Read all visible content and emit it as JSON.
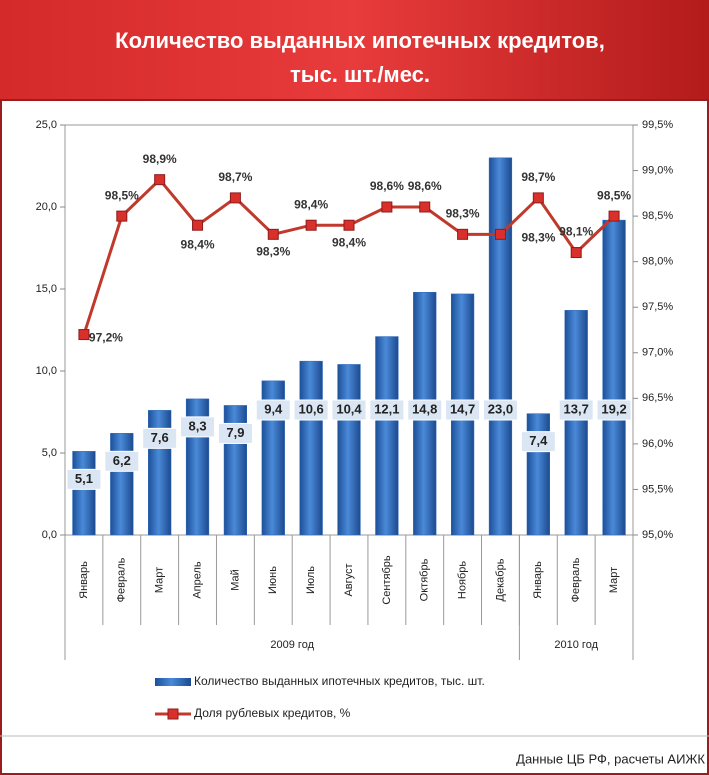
{
  "chart_data": {
    "type": "bar",
    "title_lines": [
      "Количество выданных ипотечных кредитов,",
      "тыс. шт./мес."
    ],
    "groups": [
      {
        "label": "2009 год",
        "categories": [
          "Январь",
          "Февраль",
          "Март",
          "Апрель",
          "Май",
          "Июнь",
          "Июль",
          "Август",
          "Сентябрь",
          "Октябрь",
          "Ноябрь",
          "Декабрь"
        ]
      },
      {
        "label": "2010 год",
        "categories": [
          "Январь",
          "Февраль",
          "Март"
        ]
      }
    ],
    "series": [
      {
        "name": "Количество выданных ипотечных кредитов, тыс. шт.",
        "type": "bar",
        "color": "#2a66b8",
        "values": [
          5.1,
          6.2,
          7.6,
          8.3,
          7.9,
          9.4,
          10.6,
          10.4,
          12.1,
          14.8,
          14.7,
          23.0,
          7.4,
          13.7,
          19.2
        ],
        "value_labels": [
          "5,1",
          "6,2",
          "7,6",
          "8,3",
          "7,9",
          "9,4",
          "10,6",
          "10,4",
          "12,1",
          "14,8",
          "14,7",
          "23,0",
          "7,4",
          "13,7",
          "19,2"
        ]
      },
      {
        "name": "Доля рублевых кредитов, %",
        "type": "line",
        "axis": "y2",
        "color": "#c0392b",
        "values": [
          97.2,
          98.5,
          98.9,
          98.4,
          98.7,
          98.3,
          98.4,
          98.4,
          98.6,
          98.6,
          98.3,
          98.3,
          98.7,
          98.1,
          98.5
        ],
        "value_labels": [
          "97,2%",
          "98,5%",
          "98,9%",
          "98,4%",
          "98,7%",
          "98,3%",
          "98,4%",
          "98,4%",
          "98,6%",
          "98,6%",
          "98,3%",
          "98,3%",
          "98,7%",
          "98,1%",
          "98,5%"
        ]
      }
    ],
    "ylim": [
      0,
      25
    ],
    "yticks": [
      {
        "value": 0,
        "label": "0,0"
      },
      {
        "value": 5,
        "label": "5,0"
      },
      {
        "value": 10,
        "label": "10,0"
      },
      {
        "value": 15,
        "label": "15,0"
      },
      {
        "value": 20,
        "label": "20,0"
      },
      {
        "value": 25,
        "label": "25,0"
      }
    ],
    "y2lim": [
      95,
      99.5
    ],
    "y2ticks": [
      {
        "value": 95,
        "label": "95,0%"
      },
      {
        "value": 95.5,
        "label": "95,5%"
      },
      {
        "value": 96,
        "label": "96,0%"
      },
      {
        "value": 96.5,
        "label": "96,5%"
      },
      {
        "value": 97,
        "label": "97,0%"
      },
      {
        "value": 97.5,
        "label": "97,5%"
      },
      {
        "value": 98,
        "label": "98,0%"
      },
      {
        "value": 98.5,
        "label": "98,5%"
      },
      {
        "value": 99,
        "label": "99,0%"
      },
      {
        "value": 99.5,
        "label": "99,5%"
      }
    ],
    "source": "Данные ЦБ РФ, расчеты АИЖК"
  }
}
